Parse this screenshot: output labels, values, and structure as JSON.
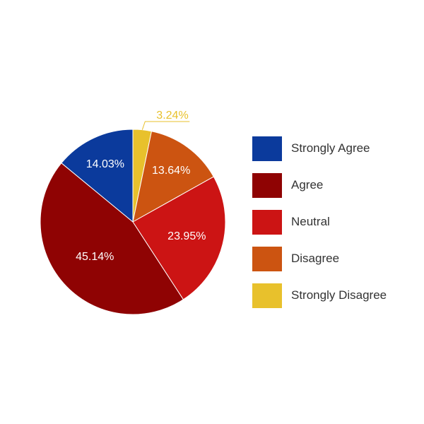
{
  "chart_data": {
    "type": "pie",
    "title": "",
    "slices": [
      {
        "label": "Strongly Agree",
        "value": 14.03,
        "display": "14.03%",
        "color": "#0b3a9c"
      },
      {
        "label": "Agree",
        "value": 45.14,
        "display": "45.14%",
        "color": "#8f0303"
      },
      {
        "label": "Neutral",
        "value": 23.95,
        "display": "23.95%",
        "color": "#cc1414"
      },
      {
        "label": "Disagree",
        "value": 13.64,
        "display": "13.64%",
        "color": "#cc5411"
      },
      {
        "label": "Strongly Disagree",
        "value": 3.24,
        "display": "3.24%",
        "color": "#e8c12c"
      }
    ],
    "legend_position": "right"
  }
}
